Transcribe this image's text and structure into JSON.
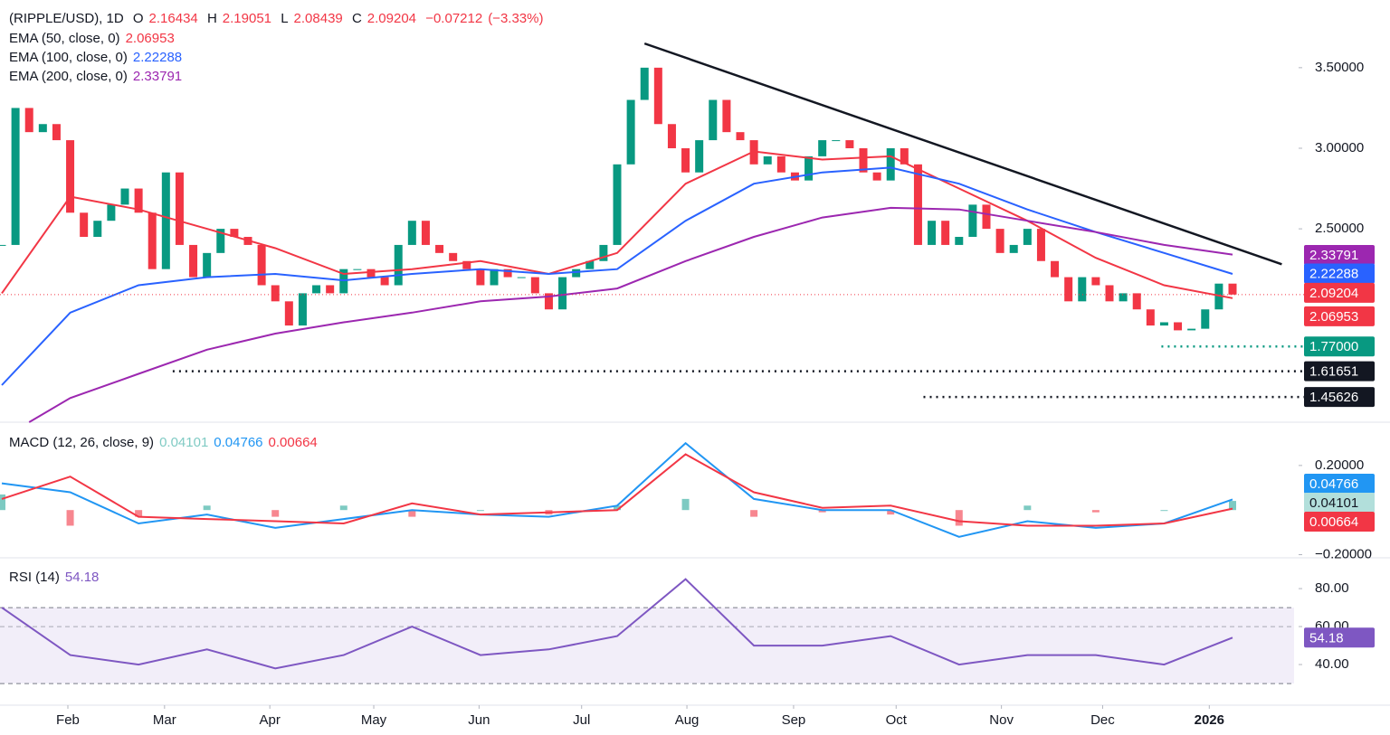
{
  "chart_data": [
    {
      "type": "candlestick",
      "title": "(RIPPLE/USD), 1D",
      "ohlc": [
        {
          "label": "O",
          "value": 2.16434
        },
        {
          "label": "H",
          "value": 2.19051
        },
        {
          "label": "L",
          "value": 2.08439
        },
        {
          "label": "C",
          "value": 2.09204
        }
      ],
      "change": {
        "value": -0.07212,
        "label": "−0.07212"
      },
      "change_pct": {
        "value": -3.33,
        "label": "(−3.33%)"
      },
      "closes": [
        2.4,
        3.25,
        3.1,
        3.15,
        3.05,
        2.6,
        2.45,
        2.55,
        2.65,
        2.75,
        2.6,
        2.25,
        2.85,
        2.4,
        2.2,
        2.35,
        2.5,
        2.45,
        2.4,
        2.15,
        2.05,
        1.9,
        2.1,
        2.15,
        2.1,
        2.25,
        2.25,
        2.2,
        2.15,
        2.4,
        2.55,
        2.4,
        2.35,
        2.3,
        2.25,
        2.15,
        2.25,
        2.2,
        2.2,
        2.1,
        2.0,
        2.2,
        2.25,
        2.3,
        2.4,
        2.9,
        3.3,
        3.5,
        3.15,
        3.0,
        2.85,
        3.05,
        3.3,
        3.1,
        3.05,
        2.9,
        2.95,
        2.85,
        2.8,
        2.95,
        3.05,
        3.05,
        3.0,
        2.85,
        2.8,
        3.0,
        2.9,
        2.4,
        2.55,
        2.4,
        2.45,
        2.65,
        2.5,
        2.35,
        2.4,
        2.5,
        2.3,
        2.2,
        2.05,
        2.2,
        2.15,
        2.05,
        2.1,
        2.0,
        1.9,
        1.92,
        1.87,
        1.88,
        2.0,
        2.16,
        2.09204
      ],
      "colors": {
        "up": "#089981",
        "down": "#f23645"
      },
      "series": [
        {
          "name": "EMA (50, close, 0)",
          "color": "#f23645",
          "last": 2.06953,
          "x": [
            0,
            5,
            10,
            15,
            20,
            25,
            30,
            35,
            40,
            45,
            50,
            55,
            60,
            65,
            70,
            75,
            80,
            85,
            90
          ],
          "values": [
            2.1,
            2.7,
            2.62,
            2.5,
            2.38,
            2.22,
            2.25,
            2.3,
            2.22,
            2.35,
            2.78,
            2.98,
            2.93,
            2.95,
            2.75,
            2.55,
            2.32,
            2.15,
            2.07
          ]
        },
        {
          "name": "EMA (100, close, 0)",
          "color": "#2962ff",
          "last": 2.22288,
          "x": [
            0,
            5,
            10,
            15,
            20,
            25,
            30,
            35,
            40,
            45,
            50,
            55,
            60,
            65,
            70,
            75,
            80,
            85,
            90
          ],
          "values": [
            1.53,
            1.98,
            2.15,
            2.2,
            2.22,
            2.18,
            2.22,
            2.25,
            2.22,
            2.25,
            2.55,
            2.78,
            2.85,
            2.88,
            2.78,
            2.62,
            2.48,
            2.35,
            2.22
          ]
        },
        {
          "name": "EMA (200, close, 0)",
          "color": "#9c27b0",
          "last": 2.33791,
          "x": [
            2,
            5,
            10,
            15,
            20,
            25,
            30,
            35,
            40,
            45,
            50,
            55,
            60,
            65,
            70,
            75,
            80,
            85,
            90
          ],
          "values": [
            1.3,
            1.45,
            1.6,
            1.75,
            1.85,
            1.92,
            1.98,
            2.05,
            2.08,
            2.13,
            2.3,
            2.45,
            2.57,
            2.63,
            2.62,
            2.55,
            2.48,
            2.4,
            2.34
          ]
        }
      ],
      "trendline": {
        "x": [
          47,
          93.6
        ],
        "values": [
          3.65,
          2.28
        ],
        "color": "#131722"
      },
      "levels": [
        {
          "x": 84.8,
          "value": {
            "value": 1.77,
            "label": "1.77000"
          },
          "color": "#089981"
        },
        {
          "x": 12.5,
          "value": 1.61651,
          "color": "#131722"
        },
        {
          "x": 67.4,
          "value": 1.45626,
          "color": "#131722"
        }
      ],
      "ylim": [
        1.3,
        3.92
      ],
      "yticks": [
        {
          "value": 3.5,
          "label": "3.50000"
        },
        {
          "value": 3.0,
          "label": "3.00000"
        },
        {
          "value": 2.5,
          "label": "2.50000"
        }
      ],
      "xlim": [
        0,
        94.5
      ],
      "xticks": [
        {
          "value": 4.83,
          "label": "Feb"
        },
        {
          "value": 11.9,
          "label": "Mar"
        },
        {
          "value": 19.6,
          "label": "Apr"
        },
        {
          "value": 27.2,
          "label": "May"
        },
        {
          "value": 34.9,
          "label": "Jun"
        },
        {
          "value": 42.4,
          "label": "Jul"
        },
        {
          "value": 50.1,
          "label": "Aug"
        },
        {
          "value": 57.9,
          "label": "Sep"
        },
        {
          "value": 65.4,
          "label": "Oct"
        },
        {
          "value": 73.1,
          "label": "Nov"
        },
        {
          "value": 80.5,
          "label": "Dec"
        },
        {
          "value": 88.3,
          "label": "2026"
        }
      ]
    },
    {
      "type": "macd",
      "title": "MACD (12, 26, close, 9)",
      "x": [
        0,
        5,
        10,
        15,
        20,
        25,
        30,
        35,
        40,
        45,
        50,
        55,
        60,
        65,
        70,
        75,
        80,
        85,
        90
      ],
      "series": [
        {
          "name": "Histogram",
          "color": "#26a69a",
          "values": [
            0.07,
            -0.07,
            -0.03,
            0.02,
            -0.03,
            0.02,
            -0.03,
            0.0,
            -0.02,
            0.02,
            0.05,
            -0.03,
            -0.01,
            -0.02,
            -0.07,
            0.02,
            -0.01,
            0.0,
            0.04101
          ]
        },
        {
          "name": "MACD",
          "color": "#2196f3",
          "values": [
            0.12,
            0.08,
            -0.06,
            -0.02,
            -0.08,
            -0.04,
            0.0,
            -0.02,
            -0.03,
            0.02,
            0.3,
            0.05,
            0.0,
            0.0,
            -0.12,
            -0.05,
            -0.08,
            -0.06,
            0.04766
          ]
        },
        {
          "name": "Signal",
          "color": "#f23645",
          "values": [
            0.05,
            0.15,
            -0.03,
            -0.04,
            -0.05,
            -0.06,
            0.03,
            -0.02,
            -0.01,
            0.0,
            0.25,
            0.08,
            0.01,
            0.02,
            -0.05,
            -0.07,
            -0.07,
            -0.06,
            0.00664
          ]
        }
      ],
      "ylim": [
        -0.21,
        0.39
      ],
      "yticks": [
        {
          "value": 0.2,
          "label": "0.20000"
        },
        {
          "value": -0.2,
          "label": "−0.20000"
        }
      ]
    },
    {
      "type": "line",
      "title": "RSI (14)",
      "x": [
        0,
        5,
        10,
        15,
        20,
        25,
        30,
        35,
        40,
        45,
        50,
        55,
        60,
        65,
        70,
        75,
        80,
        85,
        90
      ],
      "series": [
        {
          "name": "RSI",
          "color": "#7e57c2",
          "values": [
            70,
            45,
            40,
            48,
            38,
            45,
            60,
            45,
            48,
            55,
            85,
            50,
            50,
            55,
            40,
            45,
            45,
            40,
            54.18
          ]
        }
      ],
      "bands": [
        70,
        30
      ],
      "ylim": [
        18.6,
        94.8
      ],
      "yticks": [
        {
          "value": 80,
          "label": "80.00"
        },
        {
          "value": 60,
          "label": "60.00"
        },
        {
          "value": 40,
          "label": "40.00"
        }
      ]
    }
  ]
}
